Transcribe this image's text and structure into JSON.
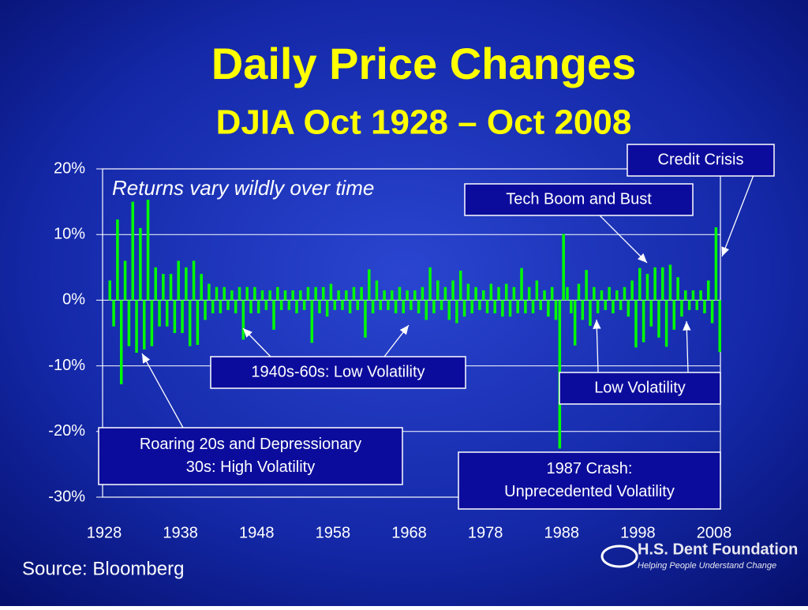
{
  "chart_data": {
    "type": "spike",
    "title": "Daily Price Changes",
    "subtitle": "DJIA Oct 1928 – Oct 2008",
    "note": "Returns vary wildly over time",
    "source": "Source: Bloomberg",
    "color": "#00ff00",
    "grid": true,
    "xlim": [
      1928,
      2008.8
    ],
    "xticks": [
      1928,
      1938,
      1948,
      1958,
      1968,
      1978,
      1988,
      1998,
      2008
    ],
    "ylim": [
      -30,
      20
    ],
    "yticks": [
      {
        "value": 20,
        "label": "20%"
      },
      {
        "value": 10,
        "label": "10%"
      },
      {
        "value": 0,
        "label": "0%"
      },
      {
        "value": -10,
        "label": "-10%"
      },
      {
        "value": -20,
        "label": "-20%"
      },
      {
        "value": -30,
        "label": "-30%"
      }
    ],
    "x": [
      1928.75,
      1929.25,
      1929.75,
      1930.25,
      1930.75,
      1931.25,
      1931.75,
      1932.25,
      1932.75,
      1933.25,
      1933.75,
      1934.25,
      1934.75,
      1935.25,
      1935.75,
      1936.25,
      1936.75,
      1937.25,
      1937.75,
      1938.25,
      1938.75,
      1939.25,
      1939.75,
      1940.25,
      1940.75,
      1941.25,
      1941.75,
      1942.25,
      1942.75,
      1943.25,
      1943.75,
      1944.25,
      1944.75,
      1945.25,
      1945.75,
      1946.25,
      1946.75,
      1947.25,
      1947.75,
      1948.25,
      1948.75,
      1949.25,
      1949.75,
      1950.25,
      1950.75,
      1951.25,
      1951.75,
      1952.25,
      1952.75,
      1953.25,
      1953.75,
      1954.25,
      1954.75,
      1955.25,
      1955.75,
      1956.25,
      1956.75,
      1957.25,
      1957.75,
      1958.25,
      1958.75,
      1959.25,
      1959.75,
      1960.25,
      1960.75,
      1961.25,
      1961.75,
      1962.25,
      1962.75,
      1963.25,
      1963.75,
      1964.25,
      1964.75,
      1965.25,
      1965.75,
      1966.25,
      1966.75,
      1967.25,
      1967.75,
      1968.25,
      1968.75,
      1969.25,
      1969.75,
      1970.25,
      1970.75,
      1971.25,
      1971.75,
      1972.25,
      1972.75,
      1973.25,
      1973.75,
      1974.25,
      1974.75,
      1975.25,
      1975.75,
      1976.25,
      1976.75,
      1977.25,
      1977.75,
      1978.25,
      1978.75,
      1979.25,
      1979.75,
      1980.25,
      1980.75,
      1981.25,
      1981.75,
      1982.25,
      1982.75,
      1983.25,
      1983.75,
      1984.25,
      1984.75,
      1985.25,
      1985.75,
      1986.25,
      1986.75,
      1987.25,
      1987.75,
      1988.25,
      1988.75,
      1989.25,
      1989.75,
      1990.25,
      1990.75,
      1991.25,
      1991.75,
      1992.25,
      1992.75,
      1993.25,
      1993.75,
      1994.25,
      1994.75,
      1995.25,
      1995.75,
      1996.25,
      1996.75,
      1997.25,
      1997.75,
      1998.25,
      1998.75,
      1999.25,
      1999.75,
      2000.25,
      2000.75,
      2001.25,
      2001.75,
      2002.25,
      2002.75,
      2003.25,
      2003.75,
      2004.25,
      2004.75,
      2005.25,
      2005.75,
      2006.25,
      2006.75,
      2007.25,
      2007.75,
      2008.25,
      2008.75
    ],
    "values": [
      3,
      -4,
      12.3,
      -12.8,
      6,
      -7,
      15,
      -8,
      11,
      -7.5,
      15.3,
      -7,
      5,
      -4,
      4,
      -4,
      4,
      -5,
      6,
      -5,
      5,
      -7,
      6,
      -6.8,
      4,
      -3,
      2.5,
      -2,
      2,
      -2,
      2,
      -1.5,
      1.5,
      -2,
      2,
      -6,
      2,
      -2,
      2,
      -2,
      1.5,
      -1.5,
      1.5,
      -4.5,
      2,
      -1.5,
      1.5,
      -1.5,
      1.5,
      -2,
      1.5,
      -1.5,
      2,
      -6.5,
      2,
      -2,
      2,
      -2.5,
      2.5,
      -1.5,
      1.5,
      -1.5,
      1.5,
      -2,
      2,
      -1.5,
      2,
      -5.7,
      4.7,
      -2,
      3,
      -1.5,
      1.5,
      -1.5,
      1.5,
      -2,
      2,
      -2,
      1.5,
      -1.5,
      1.5,
      -2,
      2,
      -3,
      5,
      -2,
      3,
      -1.5,
      2,
      -3,
      3,
      -3.5,
      4.5,
      -2.5,
      2.5,
      -2,
      2,
      -1.5,
      1.5,
      -2,
      2.5,
      -2,
      2,
      -2.5,
      2.5,
      -2.5,
      2,
      -2,
      4.9,
      -2,
      2,
      -2,
      3,
      -1.5,
      1.5,
      -2.5,
      2,
      -3,
      -22.6,
      10.1,
      2,
      -2,
      -6.9,
      2.5,
      -3,
      4.6,
      -3.9,
      2,
      -2,
      1.5,
      -1.5,
      2,
      -2,
      1.5,
      -1.5,
      2,
      -2.5,
      3,
      -7.2,
      4.9,
      -6.4,
      4,
      -4,
      5,
      -5.7,
      5,
      -7.1,
      5.4,
      -4.5,
      3.5,
      -2.5,
      1.5,
      -1.5,
      1.5,
      -1.5,
      1.5,
      -2,
      3,
      -3.5,
      11.1,
      -7.9
    ],
    "annotations": [
      {
        "lines": [
          "Credit Crisis"
        ]
      },
      {
        "lines": [
          "Tech Boom and Bust"
        ]
      },
      {
        "lines": [
          "1940s-60s: Low Volatility"
        ]
      },
      {
        "lines": [
          "Low Volatility"
        ]
      },
      {
        "lines": [
          "Roaring 20s and Depressionary",
          "30s: High Volatility"
        ]
      },
      {
        "lines": [
          "1987 Crash:",
          "Unprecedented Volatility"
        ]
      }
    ]
  },
  "logo": {
    "name": "H.S. Dent Foundation",
    "tagline": "Helping People Understand Change"
  }
}
